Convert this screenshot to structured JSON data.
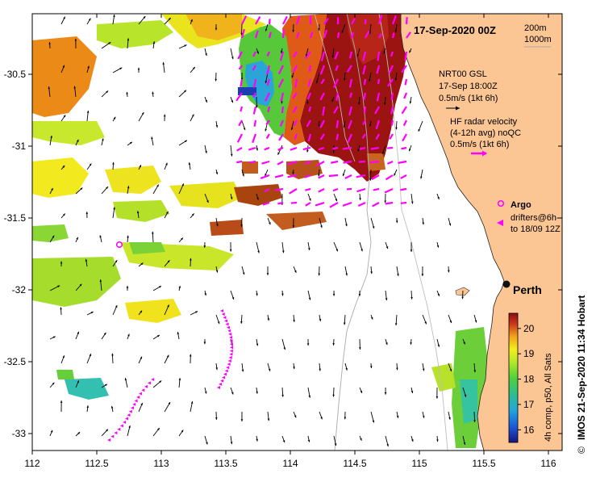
{
  "map": {
    "title": "17-Sep-2020 00Z",
    "isobaths": {
      "line1": "200m",
      "line2": "1000m"
    },
    "x_ticks": [
      "112",
      "112.5",
      "113",
      "113.5",
      "114",
      "114.5",
      "115",
      "115.5",
      "116"
    ],
    "y_ticks": [
      "-30.5",
      "-31",
      "-31.5",
      "-32",
      "-32.5",
      "-33"
    ],
    "x_range": [
      112,
      116.3
    ],
    "y_range": [
      -30.1,
      -33.1
    ],
    "city": {
      "label": "Perth",
      "lon": 115.87,
      "lat": -31.95
    }
  },
  "legend": {
    "gsl": {
      "line1": "NRT00 GSL",
      "line2": "17-Sep 18:00Z",
      "line3": "0.5m/s (1kt 6h)"
    },
    "hf": {
      "line1": "HF radar velocity",
      "line2": "(4-12h avg) noQC",
      "line3": "0.5m/s (1kt 6h)"
    },
    "argo": {
      "label": "Argo"
    },
    "drifters": {
      "line1": "drifters@6h-",
      "line2": "to 18/09 12Z"
    }
  },
  "colorbar": {
    "ticks": [
      "20",
      "19",
      "18",
      "17",
      "16"
    ],
    "label": "4h comp, p50, All Sats",
    "min": 15.5,
    "max": 20.6
  },
  "credit": {
    "text": "IMOS 21-Sep-2020 11:34 Hobart",
    "symbol": "©"
  },
  "colors": {
    "land": "#fbc594",
    "argo": "#ff00ff",
    "drifter": "#ff00ff",
    "hf_vector": "#ff00ff",
    "gsl_vector": "#000000"
  }
}
